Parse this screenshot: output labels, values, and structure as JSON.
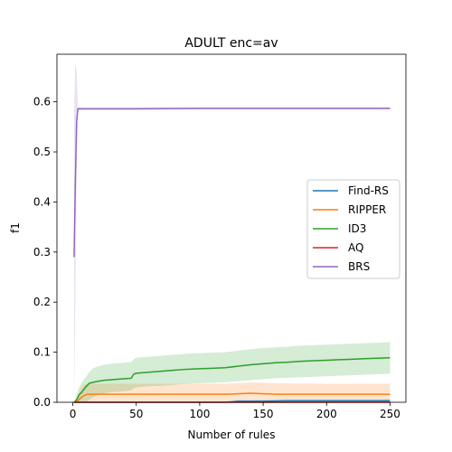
{
  "chart_data": {
    "type": "line",
    "title": "ADULT enc=av",
    "xlabel": "Number of rules",
    "ylabel": "f1",
    "xlim": [
      -12.5,
      262.5
    ],
    "ylim": [
      0.0,
      0.695
    ],
    "xticks": [
      0,
      50,
      100,
      150,
      200,
      250
    ],
    "yticks": [
      0.0,
      0.1,
      0.2,
      0.3,
      0.4,
      0.5,
      0.6
    ],
    "grid": false,
    "legend_position": "center-right",
    "series": [
      {
        "name": "Find-RS",
        "color": "#1f77b4",
        "x": [
          1,
          120,
          125,
          130,
          150,
          170,
          200,
          250
        ],
        "y": [
          0.0,
          0.0,
          0.001,
          0.002,
          0.002,
          0.003,
          0.003,
          0.003
        ],
        "band_low": [
          0.0,
          0.0,
          0.0,
          0.0,
          0.0,
          0.0,
          0.0,
          0.0
        ],
        "band_high": [
          0.0,
          0.0,
          0.002,
          0.004,
          0.005,
          0.006,
          0.006,
          0.006
        ]
      },
      {
        "name": "RIPPER",
        "color": "#ff7f0e",
        "x": [
          1,
          4,
          6,
          8,
          10,
          12,
          50,
          100,
          120,
          140,
          160,
          200,
          250
        ],
        "y": [
          0.0,
          0.003,
          0.008,
          0.012,
          0.015,
          0.016,
          0.016,
          0.016,
          0.016,
          0.018,
          0.016,
          0.016,
          0.016
        ],
        "band_low": [
          0.0,
          0.0,
          0.0,
          0.0,
          0.0,
          0.0,
          0.0,
          0.0,
          0.0,
          0.0,
          0.0,
          0.0,
          0.0
        ],
        "band_high": [
          0.0,
          0.012,
          0.025,
          0.033,
          0.036,
          0.037,
          0.037,
          0.037,
          0.037,
          0.04,
          0.038,
          0.037,
          0.037
        ]
      },
      {
        "name": "ID3",
        "color": "#2ca02c",
        "x": [
          1,
          3,
          5,
          7,
          10,
          13,
          16,
          20,
          25,
          30,
          40,
          46,
          48,
          50,
          60,
          70,
          80,
          90,
          100,
          110,
          120,
          130,
          140,
          150,
          160,
          170,
          180,
          190,
          200,
          210,
          220,
          230,
          240,
          250
        ],
        "y": [
          0.0,
          0.005,
          0.015,
          0.02,
          0.03,
          0.038,
          0.04,
          0.042,
          0.044,
          0.045,
          0.047,
          0.048,
          0.056,
          0.058,
          0.06,
          0.062,
          0.064,
          0.066,
          0.067,
          0.068,
          0.069,
          0.072,
          0.075,
          0.077,
          0.079,
          0.08,
          0.082,
          0.083,
          0.084,
          0.085,
          0.086,
          0.087,
          0.088,
          0.089
        ],
        "band_low": [
          0.0,
          0.0,
          0.0,
          0.0,
          0.0,
          0.005,
          0.01,
          0.015,
          0.018,
          0.02,
          0.022,
          0.024,
          0.028,
          0.03,
          0.032,
          0.033,
          0.035,
          0.037,
          0.038,
          0.039,
          0.04,
          0.042,
          0.044,
          0.046,
          0.048,
          0.049,
          0.05,
          0.051,
          0.052,
          0.053,
          0.054,
          0.055,
          0.056,
          0.057
        ],
        "band_high": [
          0.0,
          0.015,
          0.03,
          0.04,
          0.05,
          0.06,
          0.068,
          0.072,
          0.075,
          0.077,
          0.079,
          0.08,
          0.086,
          0.089,
          0.091,
          0.093,
          0.095,
          0.097,
          0.098,
          0.099,
          0.1,
          0.103,
          0.106,
          0.108,
          0.11,
          0.111,
          0.113,
          0.114,
          0.115,
          0.116,
          0.117,
          0.118,
          0.119,
          0.12
        ]
      },
      {
        "name": "AQ",
        "color": "#d62728",
        "x": [
          1,
          250
        ],
        "y": [
          0.0,
          0.0
        ],
        "band_low": [
          0.0,
          0.0
        ],
        "band_high": [
          0.0,
          0.0
        ]
      },
      {
        "name": "BRS",
        "color": "#9467bd",
        "x": [
          1,
          2,
          3,
          4,
          5,
          10,
          50,
          100,
          150,
          200,
          250
        ],
        "y": [
          0.29,
          0.44,
          0.56,
          0.586,
          0.586,
          0.586,
          0.586,
          0.587,
          0.587,
          0.587,
          0.587
        ],
        "band_low": [
          0.0,
          0.2,
          0.45,
          0.582,
          0.583,
          0.584,
          0.584,
          0.585,
          0.585,
          0.585,
          0.585
        ],
        "band_high": [
          0.58,
          0.68,
          0.66,
          0.59,
          0.589,
          0.589,
          0.589,
          0.589,
          0.589,
          0.589,
          0.589
        ]
      }
    ]
  }
}
